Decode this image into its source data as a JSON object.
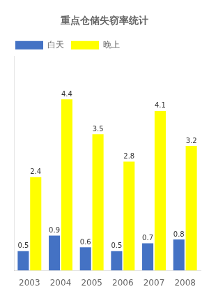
{
  "chart_data": {
    "type": "bar",
    "title": "重点仓储失窃率统计",
    "categories": [
      "2003",
      "2004",
      "2005",
      "2006",
      "2007",
      "2008"
    ],
    "series": [
      {
        "name": "白天",
        "color": "#4472C4",
        "values": [
          0.5,
          0.9,
          0.6,
          0.5,
          0.7,
          0.8
        ]
      },
      {
        "name": "晚上",
        "color": "#FFFF00",
        "values": [
          2.4,
          4.4,
          3.5,
          2.8,
          4.1,
          3.2
        ]
      }
    ],
    "ylim": [
      0,
      5.5
    ],
    "grid": false,
    "legend": "upper left",
    "data_labels": true,
    "tick_labels": "x"
  }
}
